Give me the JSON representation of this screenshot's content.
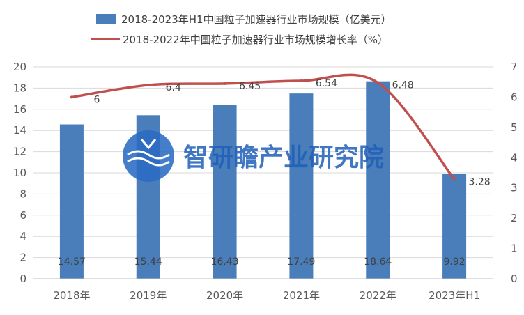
{
  "chart_data": {
    "type": "bar",
    "categories": [
      "2018年",
      "2019年",
      "2020年",
      "2021年",
      "2022年",
      "2023年H1"
    ],
    "series": [
      {
        "name": "2018-2023年H1中国粒子加速器行业市场规模（亿美元）",
        "kind": "bar",
        "axis": "left",
        "color": "#4a7ebb",
        "values": [
          14.57,
          15.44,
          16.43,
          17.49,
          18.64,
          9.92
        ],
        "labels": [
          "14.57",
          "15.44",
          "16.43",
          "17.49",
          "18.64",
          "9.92"
        ]
      },
      {
        "name": "2018-2022年中国粒子加速器行业市场规模增长率（%）",
        "kind": "line",
        "axis": "right",
        "color": "#c0504d",
        "values": [
          6,
          6.4,
          6.45,
          6.54,
          6.48,
          3.28
        ],
        "labels": [
          "6",
          "6.4",
          "6.45",
          "6.54",
          "6.48",
          "3.28"
        ]
      }
    ],
    "y_left": {
      "range": [
        0,
        20
      ],
      "ticks": [
        "0",
        "2",
        "4",
        "6",
        "8",
        "10",
        "12",
        "14",
        "16",
        "18",
        "20"
      ]
    },
    "y_right": {
      "range": [
        0,
        7
      ],
      "ticks": [
        "0",
        "1",
        "2",
        "3",
        "4",
        "5",
        "6",
        "7"
      ]
    },
    "grid": true,
    "legend": "top-center"
  },
  "watermark": {
    "text": "智研瞻产业研究院",
    "icon": "logo-wave-icon",
    "color": "#1f5fb8"
  }
}
